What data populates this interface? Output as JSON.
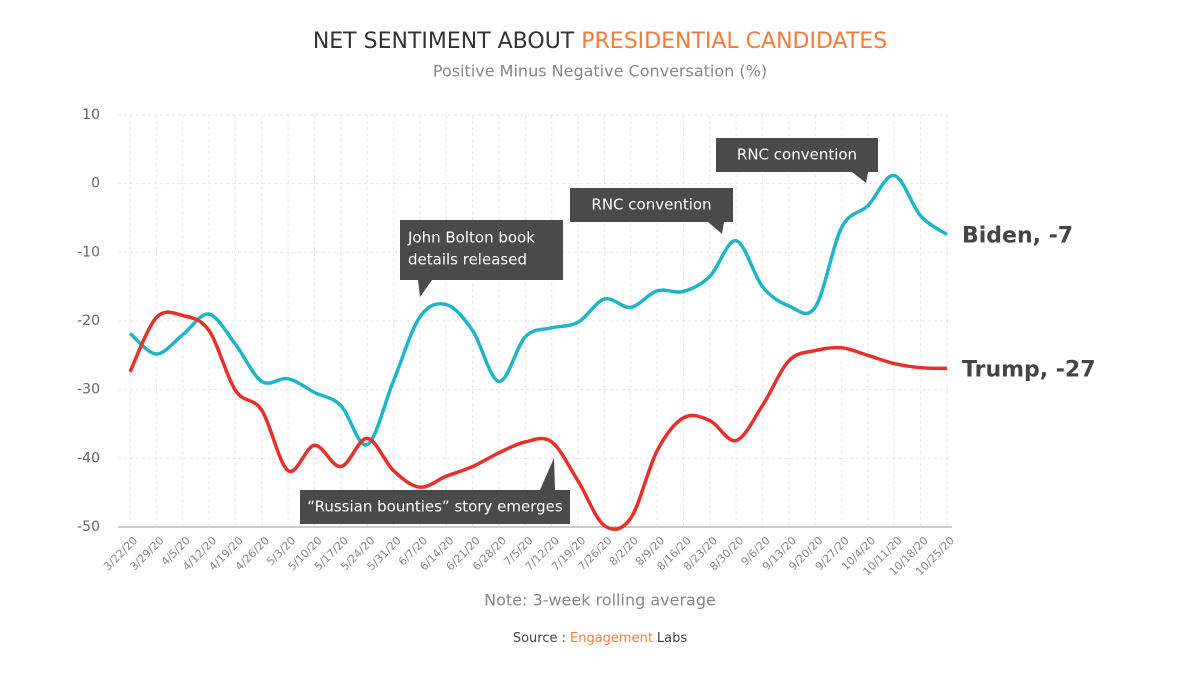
{
  "chart_data": {
    "type": "line",
    "title_parts": [
      "NET SENTIMENT ABOUT",
      "PRESIDENTIAL CANDIDATES"
    ],
    "title_colors": [
      "#333333",
      "#f47b3a"
    ],
    "subtitle": "Positive Minus Negative Conversation (%)",
    "note": "Note: 3-week rolling average",
    "source_parts": [
      "Source :",
      "Engagement",
      "Labs"
    ],
    "categories": [
      "3/22/20",
      "3/29/20",
      "4/5/20",
      "4/12/20",
      "4/19/20",
      "4/26/20",
      "5/3/20",
      "5/10/20",
      "5/17/20",
      "5/24/20",
      "5/31/20",
      "6/7/20",
      "6/14/20",
      "6/21/20",
      "6/28/20",
      "7/5/20",
      "7/12/20",
      "7/19/20",
      "7/26/20",
      "8/2/20",
      "8/9/20",
      "8/16/20",
      "8/23/20",
      "8/30/20",
      "9/6/20",
      "9/13/20",
      "9/20/20",
      "9/27/20",
      "10/4/20",
      "10/11/20",
      "10/18/20",
      "10/25/20"
    ],
    "series": [
      {
        "name": "Biden, -7",
        "color": "#1fb5c9",
        "values": [
          -21.8,
          -24.8,
          -22,
          -19,
          -23.4,
          -28.8,
          -28.4,
          -30.4,
          -32.3,
          -38,
          -28.7,
          -19.4,
          -17.6,
          -21.4,
          -28.8,
          -22.3,
          -21,
          -20.2,
          -16.8,
          -18,
          -15.6,
          -15.7,
          -13.5,
          -8.3,
          -15,
          -17.8,
          -18,
          -6.4,
          -3.2,
          1.2,
          -4.7,
          -7.4
        ]
      },
      {
        "name": "Trump, -27",
        "color": "#e8302a",
        "values": [
          -27.4,
          -19.5,
          -19.2,
          -21.4,
          -30.1,
          -33,
          -41.8,
          -38.1,
          -41.2,
          -37.1,
          -41.8,
          -44.2,
          -42.6,
          -41.2,
          -39.2,
          -37.6,
          -37.6,
          -43.3,
          -49.8,
          -48.7,
          -38.9,
          -34.1,
          -34.5,
          -37.4,
          -32.3,
          -25.8,
          -24.3,
          -23.9,
          -25,
          -26.2,
          -26.8,
          -26.9
        ]
      }
    ],
    "annotations": [
      {
        "lines": [
          "John Bolton book",
          "details released"
        ]
      },
      {
        "lines": [
          "RNC convention"
        ]
      },
      {
        "lines": [
          "RNC convention"
        ]
      },
      {
        "lines": [
          "“Russian bounties” story emerges"
        ]
      }
    ],
    "ylim": [
      -50,
      10
    ],
    "yticks": [
      10,
      0,
      -10,
      -20,
      -30,
      -40,
      -50
    ],
    "grid": true
  }
}
